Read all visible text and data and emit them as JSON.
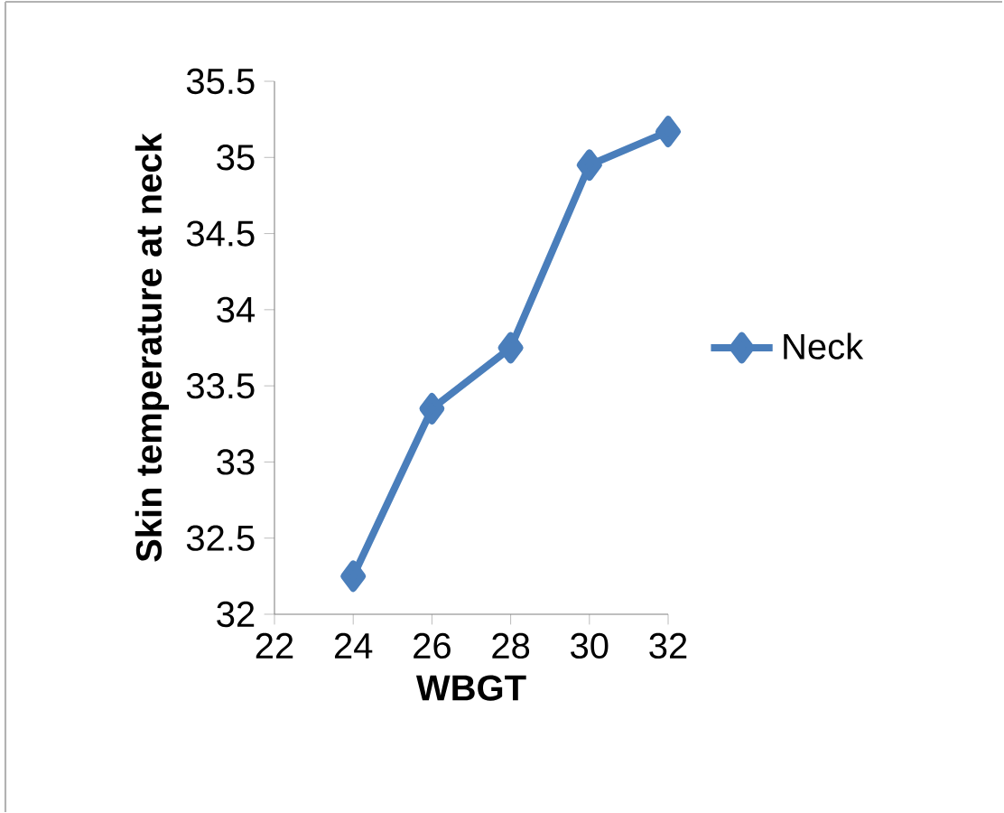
{
  "chart_data": {
    "type": "line",
    "xlabel": "WBGT",
    "ylabel": "Skin temperature at neck",
    "x": [
      24,
      26,
      28,
      30,
      32
    ],
    "series": [
      {
        "name": "Neck",
        "color": "#4a7ebb",
        "values": [
          32.25,
          33.35,
          33.75,
          34.95,
          35.17
        ]
      }
    ],
    "xlim": [
      22,
      32
    ],
    "xticks": [
      22,
      24,
      26,
      28,
      30,
      32
    ],
    "ylim": [
      32,
      35.5
    ],
    "yticks": [
      32,
      32.5,
      33,
      33.5,
      34,
      34.5,
      35,
      35.5
    ],
    "grid": false,
    "legend": "right",
    "marker": "diamond",
    "line_style": "solid"
  }
}
